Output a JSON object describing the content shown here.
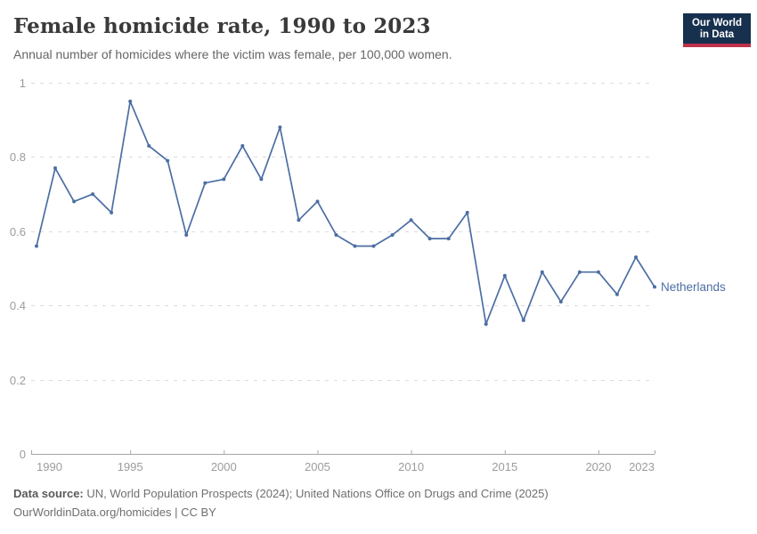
{
  "header": {
    "title": "Female homicide rate, 1990 to 2023",
    "subtitle": "Annual number of homicides where the victim was female, per 100,000 women."
  },
  "logo": {
    "line1": "Our World",
    "line2": "in Data",
    "bg_color": "#16304e",
    "accent_color": "#c0304a"
  },
  "chart_data": {
    "type": "line",
    "title": "Female homicide rate, 1990 to 2023",
    "xlabel": "",
    "ylabel": "",
    "x": [
      1990,
      1991,
      1992,
      1993,
      1994,
      1995,
      1996,
      1997,
      1998,
      1999,
      2000,
      2001,
      2002,
      2003,
      2004,
      2005,
      2006,
      2007,
      2008,
      2009,
      2010,
      2011,
      2012,
      2013,
      2014,
      2015,
      2016,
      2017,
      2018,
      2019,
      2020,
      2021,
      2022,
      2023
    ],
    "series": [
      {
        "name": "Netherlands",
        "color": "#4C6EA3",
        "values": [
          0.56,
          0.77,
          0.68,
          0.7,
          0.65,
          0.95,
          0.83,
          0.79,
          0.59,
          0.73,
          0.74,
          0.83,
          0.74,
          0.88,
          0.63,
          0.68,
          0.59,
          0.56,
          0.56,
          0.59,
          0.63,
          0.58,
          0.58,
          0.65,
          0.35,
          0.48,
          0.36,
          0.49,
          0.41,
          0.49,
          0.49,
          0.43,
          0.53,
          0.45
        ]
      }
    ],
    "ylim": [
      0,
      1
    ],
    "yticks": [
      0,
      0.2,
      0.4,
      0.6,
      0.8,
      1
    ],
    "xticks": [
      1990,
      1995,
      2000,
      2005,
      2010,
      2015,
      2020,
      2023
    ],
    "grid": "horizontal-dashed",
    "legend": "end-of-line-label",
    "colors": {
      "gridline": "#dcdcdc",
      "axis": "#a6a6a6",
      "tick_label": "#9c9c9c"
    }
  },
  "footer": {
    "source_label": "Data source:",
    "source_text": "UN, World Population Prospects (2024); United Nations Office on Drugs and Crime (2025)",
    "note": "OurWorldinData.org/homicides | CC BY"
  }
}
